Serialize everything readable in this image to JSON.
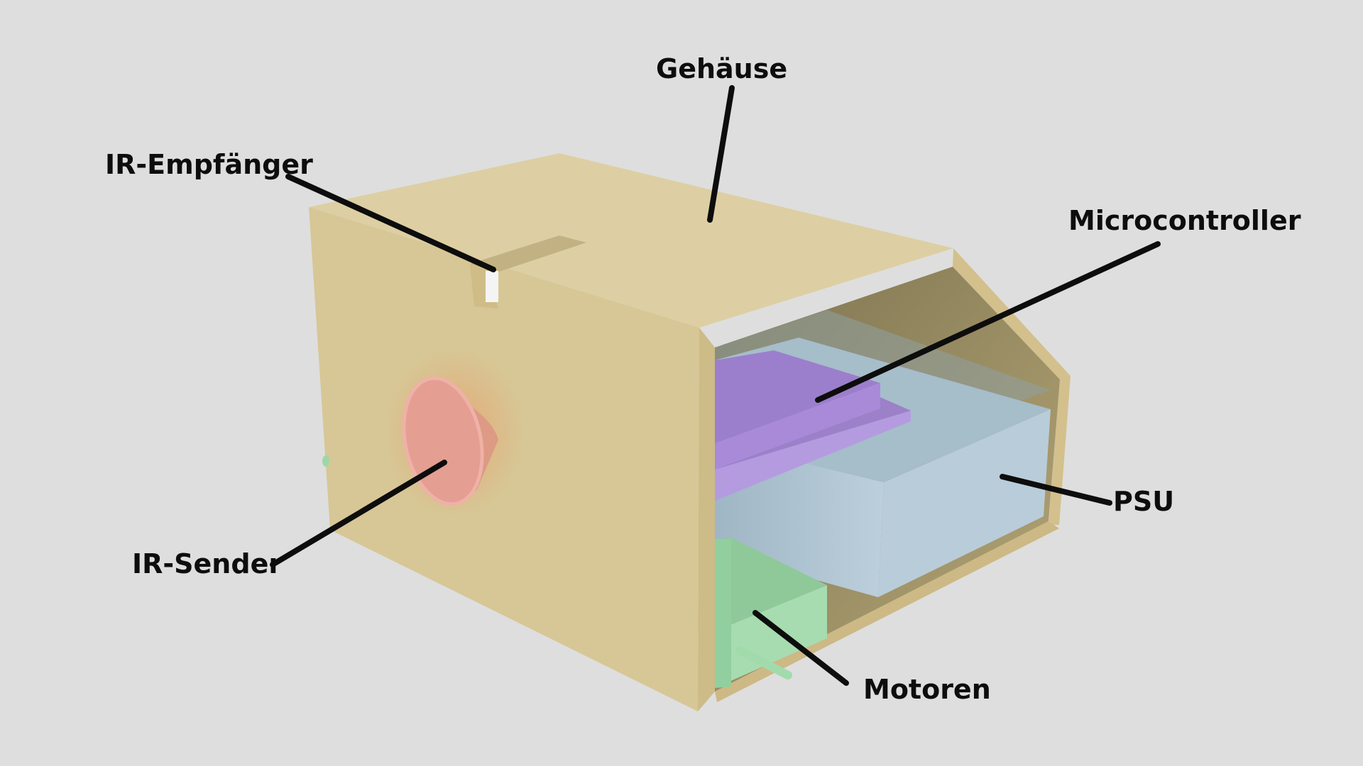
{
  "diagram": {
    "labels": {
      "gehaeuse": "Gehäuse",
      "ir_empfaenger": "IR-Empfänger",
      "microcontroller": "Microcontroller",
      "psu": "PSU",
      "ir_sender": "IR-Sender",
      "motoren": "Motoren"
    },
    "colors": {
      "background": "#dedede",
      "housing": "#dcca98",
      "microcontroller": "#a98bd8",
      "psu": "#b7cad8",
      "motor": "#a6dcae",
      "ir_sender": "#e89a8a",
      "leader_line": "#0d0d0d"
    }
  }
}
